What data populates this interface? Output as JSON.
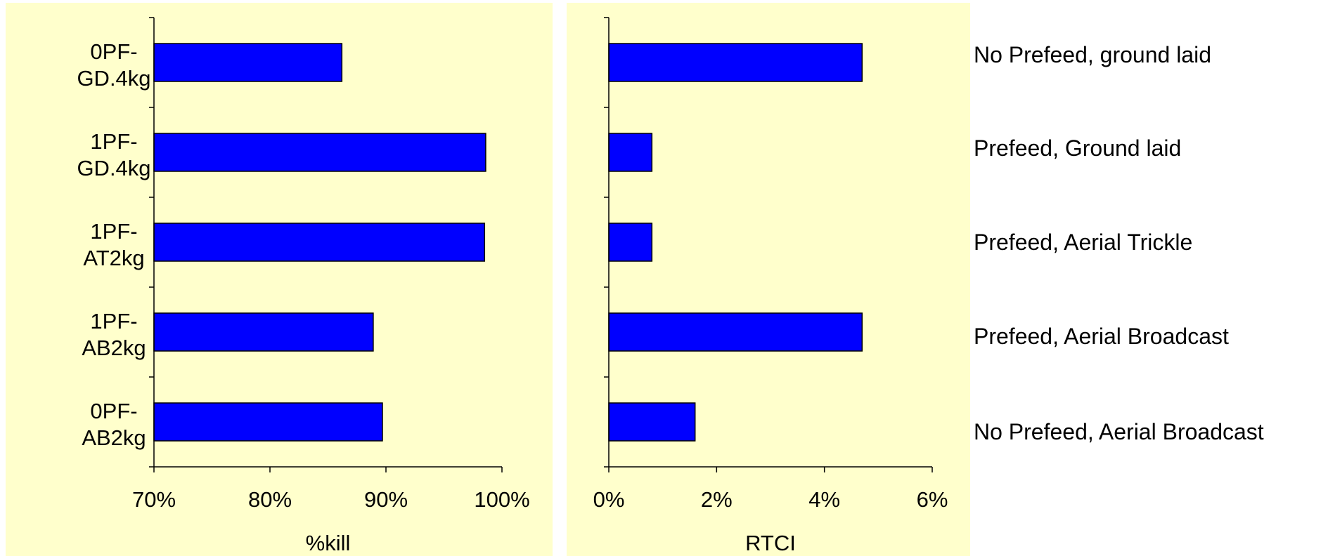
{
  "chart_data": [
    {
      "type": "bar",
      "orientation": "horizontal",
      "categories": [
        [
          "0PF-",
          "GD.4kg"
        ],
        [
          "1PF-",
          "GD.4kg"
        ],
        [
          "1PF-",
          "AT2kg"
        ],
        [
          "1PF-",
          "AB2kg"
        ],
        [
          "0PF-",
          "AB2kg"
        ]
      ],
      "values": [
        86.2,
        98.6,
        98.5,
        88.9,
        89.7
      ],
      "value_unit": "%",
      "xlim": [
        70,
        100
      ],
      "xticks": [
        "70%",
        "80%",
        "90%",
        "100%"
      ],
      "xlabel": "%kill",
      "ylabel": "",
      "title": "",
      "grid": false,
      "legend": "none",
      "bar_color": "#0000FF",
      "background": "#FFFFCC"
    },
    {
      "type": "bar",
      "orientation": "horizontal",
      "values": [
        4.7,
        0.8,
        0.8,
        4.7,
        1.6
      ],
      "value_unit": "%",
      "xlim": [
        0,
        6
      ],
      "xticks": [
        "0%",
        "2%",
        "4%",
        "6%"
      ],
      "xlabel": "RTCI",
      "ylabel": "",
      "title": "",
      "grid": false,
      "legend": "none",
      "bar_color": "#0000FF",
      "background": "#FFFFCC"
    }
  ],
  "annotations": [
    "No Prefeed, ground laid",
    "Prefeed, Ground laid",
    "Prefeed, Aerial Trickle",
    "Prefeed, Aerial Broadcast",
    "No Prefeed, Aerial Broadcast"
  ]
}
